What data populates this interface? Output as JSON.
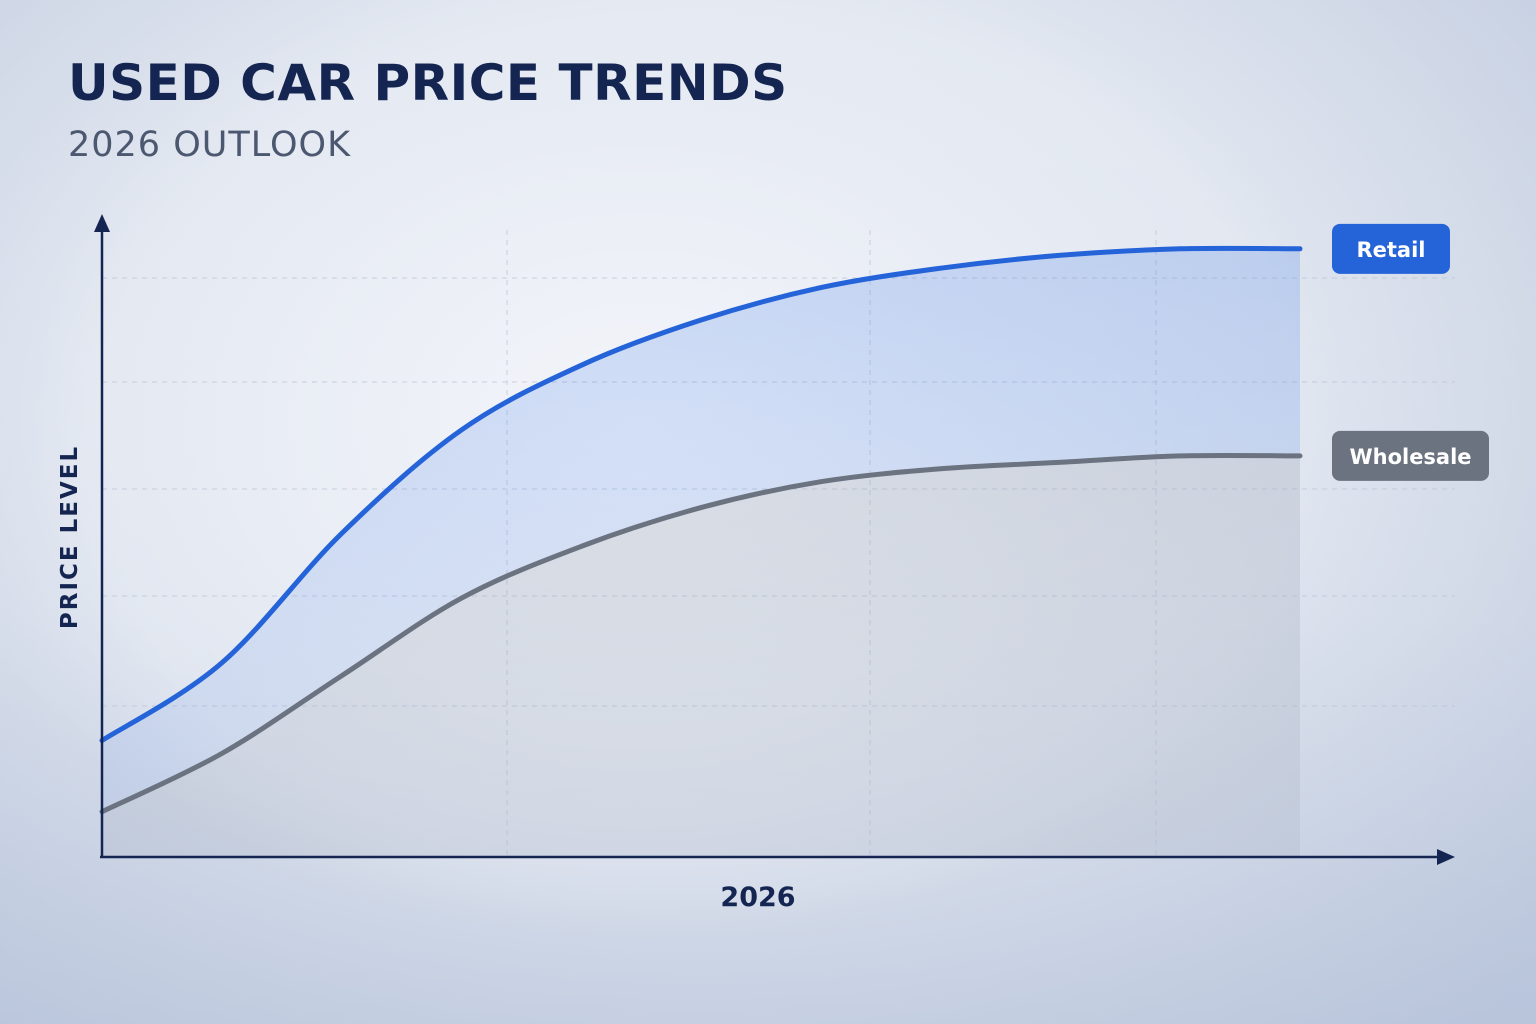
{
  "header": {
    "title": "USED CAR PRICE TRENDS",
    "subtitle": "2026 OUTLOOK"
  },
  "chart_data": {
    "type": "line",
    "title": "USED CAR PRICE TRENDS",
    "subtitle": "2026 OUTLOOK",
    "xlabel": "",
    "ylabel": "PRICE LEVEL",
    "x_tick_labels": [
      "2026"
    ],
    "x": [
      0,
      0.1,
      0.2,
      0.3,
      0.4,
      0.5,
      0.6,
      0.7,
      0.8,
      0.9,
      1.0
    ],
    "xlim": [
      0,
      1
    ],
    "ylim": [
      0,
      1
    ],
    "y_ticks_labeled": false,
    "series": [
      {
        "name": "Retail",
        "color": "#2563d9",
        "values": [
          0.18,
          0.3,
          0.5,
          0.66,
          0.76,
          0.83,
          0.88,
          0.91,
          0.93,
          0.94,
          0.94
        ]
      },
      {
        "name": "Wholesale",
        "color": "#6b7380",
        "values": [
          0.07,
          0.16,
          0.28,
          0.4,
          0.48,
          0.54,
          0.58,
          0.6,
          0.61,
          0.62,
          0.62
        ]
      }
    ],
    "grid": true,
    "legend": "right end labels"
  },
  "colors": {
    "title": "#142552",
    "subtitle": "#4c5870",
    "axis": "#142552",
    "retail": "#2563d9",
    "wholesale": "#6b7380"
  }
}
